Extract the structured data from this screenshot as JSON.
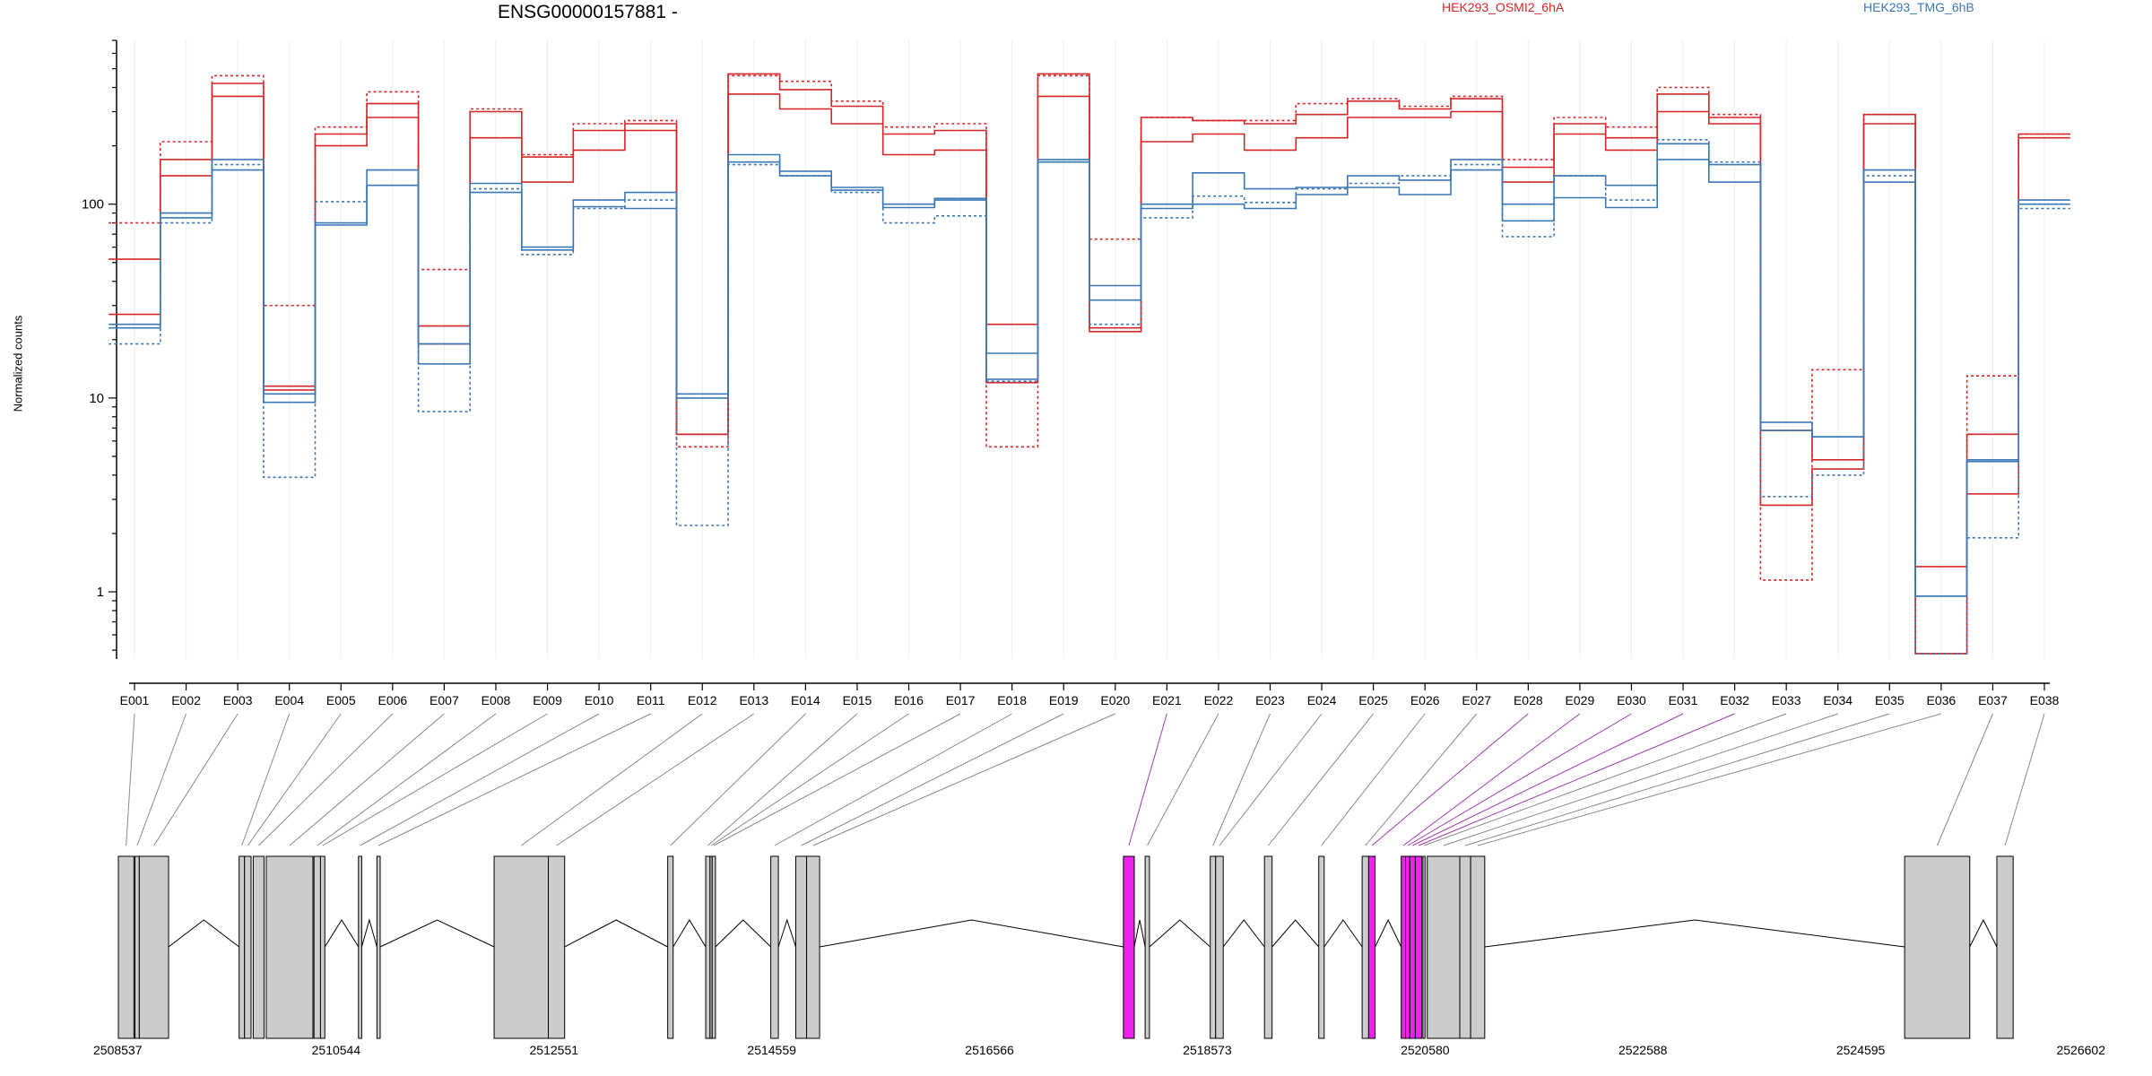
{
  "chart_data": {
    "type": "line",
    "title": "ENSG00000157881 -",
    "ylabel": "Normalized counts",
    "xlabel": "",
    "y_scale": "log",
    "ylim": [
      0.45,
      700
    ],
    "y_ticks": [
      {
        "value": 1,
        "label": "1"
      },
      {
        "value": 10,
        "label": "10"
      },
      {
        "value": 100,
        "label": "100"
      }
    ],
    "grid": true,
    "legend_placement": "top",
    "categories": [
      "E001",
      "E002",
      "E003",
      "E004",
      "E005",
      "E006",
      "E007",
      "E008",
      "E009",
      "E010",
      "E011",
      "E012",
      "E013",
      "E014",
      "E015",
      "E016",
      "E017",
      "E018",
      "E019",
      "E020",
      "E021",
      "E022",
      "E023",
      "E024",
      "E025",
      "E026",
      "E027",
      "E028",
      "E029",
      "E030",
      "E031",
      "E032",
      "E033",
      "E034",
      "E035",
      "E036",
      "E037",
      "E038"
    ],
    "highlighted_exons": [
      "E021",
      "E028",
      "E029",
      "E030",
      "E031",
      "E032"
    ],
    "series": [
      {
        "name": "HEK293_OSMI2_6hA",
        "color": "#d62728",
        "dash": "solid",
        "values": [
          52,
          140,
          360,
          11,
          200,
          280,
          19,
          220,
          130,
          190,
          240,
          6.5,
          370,
          310,
          260,
          180,
          190,
          12,
          360,
          22,
          210,
          230,
          190,
          220,
          280,
          280,
          300,
          130,
          230,
          190,
          300,
          260,
          2.8,
          4.3,
          260,
          0.48,
          3.2,
          230
        ]
      },
      {
        "name": "",
        "color": "#d62728",
        "dash": "solid",
        "values": [
          27,
          170,
          420,
          11.5,
          230,
          330,
          23.5,
          300,
          175,
          240,
          260,
          6.5,
          470,
          390,
          320,
          230,
          240,
          24,
          470,
          23,
          280,
          270,
          260,
          290,
          340,
          310,
          350,
          155,
          260,
          220,
          370,
          280,
          6.8,
          4.8,
          290,
          1.35,
          6.5,
          220
        ]
      },
      {
        "name": "",
        "color": "#d62728",
        "dash": "dashed",
        "values": [
          80,
          210,
          460,
          30,
          250,
          380,
          46,
          310,
          180,
          260,
          270,
          5.6,
          460,
          430,
          340,
          250,
          260,
          5.6,
          460,
          66,
          280,
          270,
          270,
          330,
          350,
          320,
          360,
          170,
          280,
          250,
          400,
          290,
          1.15,
          14,
          290,
          0.48,
          13,
          230
        ]
      },
      {
        "name": "HEK293_TMG_6hB",
        "color": "#3a78b5",
        "dash": "solid",
        "values": [
          24,
          85,
          150,
          10.5,
          78,
          125,
          19,
          115,
          58,
          97,
          95,
          10,
          165,
          140,
          118,
          96,
          105,
          12.5,
          165,
          32,
          95,
          100,
          95,
          112,
          122,
          112,
          150,
          82,
          108,
          96,
          170,
          130,
          6.8,
          6.3,
          130,
          0.95,
          4.8,
          100
        ]
      },
      {
        "name": "",
        "color": "#3a78b5",
        "dash": "solid",
        "values": [
          23,
          90,
          170,
          9.5,
          80,
          150,
          15,
          128,
          60,
          105,
          115,
          10.5,
          180,
          148,
          122,
          100,
          107,
          17,
          170,
          38,
          100,
          145,
          120,
          122,
          140,
          133,
          170,
          100,
          140,
          125,
          205,
          160,
          7.5,
          6.3,
          150,
          0.95,
          4.7,
          105
        ]
      },
      {
        "name": "",
        "color": "#3a78b5",
        "dash": "dashed",
        "values": [
          19,
          80,
          160,
          3.9,
          103,
          125,
          8.5,
          120,
          55,
          95,
          105,
          2.2,
          160,
          140,
          115,
          80,
          87,
          12.2,
          165,
          24,
          85,
          110,
          102,
          120,
          128,
          140,
          160,
          68,
          140,
          105,
          215,
          165,
          3.1,
          4.0,
          140,
          0.48,
          1.9,
          95
        ]
      }
    ]
  },
  "exons": [
    {
      "id": "E001",
      "start": 2508537,
      "end": 2508680
    },
    {
      "id": "E002",
      "start": 2508690,
      "end": 2508730
    },
    {
      "id": "E003",
      "start": 2508730,
      "end": 2509000
    },
    {
      "id": "E004",
      "start": 2509650,
      "end": 2509700
    },
    {
      "id": "E005",
      "start": 2509700,
      "end": 2509760
    },
    {
      "id": "E006",
      "start": 2509780,
      "end": 2509880
    },
    {
      "id": "E007",
      "start": 2509900,
      "end": 2510330
    },
    {
      "id": "E008",
      "start": 2510340,
      "end": 2510400
    },
    {
      "id": "E009",
      "start": 2510400,
      "end": 2510440
    },
    {
      "id": "E010",
      "start": 2510750,
      "end": 2510780
    },
    {
      "id": "E011",
      "start": 2510920,
      "end": 2510950
    },
    {
      "id": "E012",
      "start": 2512000,
      "end": 2512500
    },
    {
      "id": "E013",
      "start": 2512500,
      "end": 2512650
    },
    {
      "id": "E014",
      "start": 2513600,
      "end": 2513650
    },
    {
      "id": "E015",
      "start": 2513950,
      "end": 2513990
    },
    {
      "id": "E016",
      "start": 2513990,
      "end": 2514010
    },
    {
      "id": "E017",
      "start": 2514010,
      "end": 2514040
    },
    {
      "id": "E018",
      "start": 2514550,
      "end": 2514620
    },
    {
      "id": "E019",
      "start": 2514780,
      "end": 2514880
    },
    {
      "id": "E020",
      "start": 2514880,
      "end": 2515000
    },
    {
      "id": "E021",
      "start": 2517800,
      "end": 2517900
    },
    {
      "id": "E022",
      "start": 2518000,
      "end": 2518040
    },
    {
      "id": "E023",
      "start": 2518600,
      "end": 2518650
    },
    {
      "id": "E024",
      "start": 2518650,
      "end": 2518720
    },
    {
      "id": "E025",
      "start": 2519100,
      "end": 2519170
    },
    {
      "id": "E026",
      "start": 2519600,
      "end": 2519650
    },
    {
      "id": "E027",
      "start": 2520000,
      "end": 2520060
    },
    {
      "id": "E028",
      "start": 2520060,
      "end": 2520120
    },
    {
      "id": "E029",
      "start": 2520360,
      "end": 2520400
    },
    {
      "id": "E030",
      "start": 2520400,
      "end": 2520440
    },
    {
      "id": "E031",
      "start": 2520440,
      "end": 2520490
    },
    {
      "id": "E032",
      "start": 2520490,
      "end": 2520550
    },
    {
      "id": "E033",
      "start": 2520560,
      "end": 2520580
    },
    {
      "id": "E034",
      "start": 2520600,
      "end": 2520900
    },
    {
      "id": "E035",
      "start": 2520900,
      "end": 2521000
    },
    {
      "id": "E036",
      "start": 2521000,
      "end": 2521130
    },
    {
      "id": "E037",
      "start": 2525000,
      "end": 2525600
    },
    {
      "id": "E038",
      "start": 2525850,
      "end": 2526000
    }
  ],
  "genomic_axis": {
    "range": [
      2508537,
      2526602
    ],
    "ticks": [
      "2508537",
      "2510544",
      "2512551",
      "2514559",
      "2516566",
      "2518573",
      "2520580",
      "2522588",
      "2524595",
      "2526602"
    ]
  },
  "colors": {
    "exon_fill": "#cccccc",
    "highlight_fill": "#ee22ee",
    "highlight_link": "#a03ab0",
    "link": "#888888"
  }
}
